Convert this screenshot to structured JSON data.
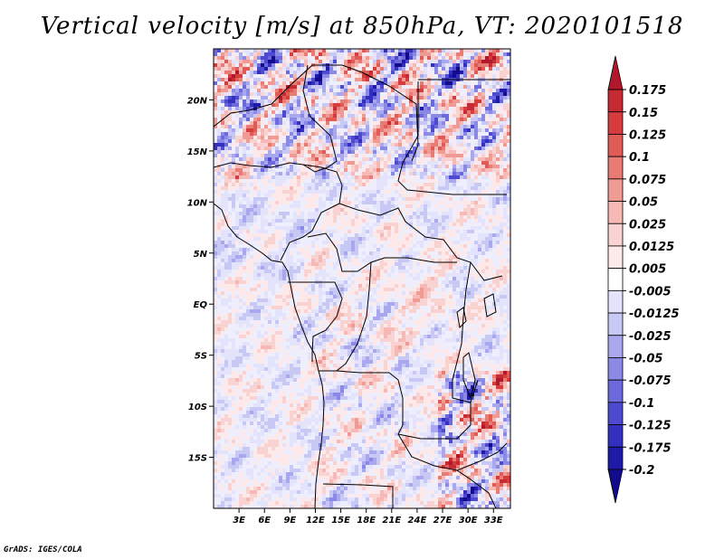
{
  "title": "Vertical velocity [m/s] at 850hPa, VT: 2020101518",
  "credit": "GrADS: IGES/COLA",
  "map": {
    "lon_range": [
      0,
      35
    ],
    "lat_range": [
      -20,
      25
    ],
    "lat_ticks": [
      {
        "value": 20,
        "label": "20N"
      },
      {
        "value": 15,
        "label": "15N"
      },
      {
        "value": 10,
        "label": "10N"
      },
      {
        "value": 5,
        "label": "5N"
      },
      {
        "value": 0,
        "label": "EQ"
      },
      {
        "value": -5,
        "label": "5S"
      },
      {
        "value": -10,
        "label": "10S"
      },
      {
        "value": -15,
        "label": "15S"
      }
    ],
    "lon_ticks": [
      {
        "value": 3,
        "label": "3E"
      },
      {
        "value": 6,
        "label": "6E"
      },
      {
        "value": 9,
        "label": "9E"
      },
      {
        "value": 12,
        "label": "12E"
      },
      {
        "value": 15,
        "label": "15E"
      },
      {
        "value": 18,
        "label": "18E"
      },
      {
        "value": 21,
        "label": "21E"
      },
      {
        "value": 24,
        "label": "24E"
      },
      {
        "value": 27,
        "label": "27E"
      },
      {
        "value": 30,
        "label": "30E"
      },
      {
        "value": 33,
        "label": "33E"
      }
    ]
  },
  "colorbar": {
    "levels": [
      "0.175",
      "0.15",
      "0.125",
      "0.1",
      "0.075",
      "0.05",
      "0.025",
      "0.0125",
      "0.005",
      "-0.005",
      "-0.0125",
      "-0.025",
      "-0.05",
      "-0.075",
      "-0.1",
      "-0.125",
      "-0.175",
      "-0.2"
    ],
    "colors": [
      "#b2182b",
      "#c62a32",
      "#d63c3e",
      "#e05a56",
      "#e87b73",
      "#f09a94",
      "#f6b9b6",
      "#f9d3d2",
      "#fde9e9",
      "#ffffff",
      "#e3e3fb",
      "#c8c8f5",
      "#a9a8ee",
      "#8b89e6",
      "#6b69dc",
      "#4d4ad0",
      "#3330c0",
      "#1f1aa8",
      "#120c8c"
    ]
  }
}
